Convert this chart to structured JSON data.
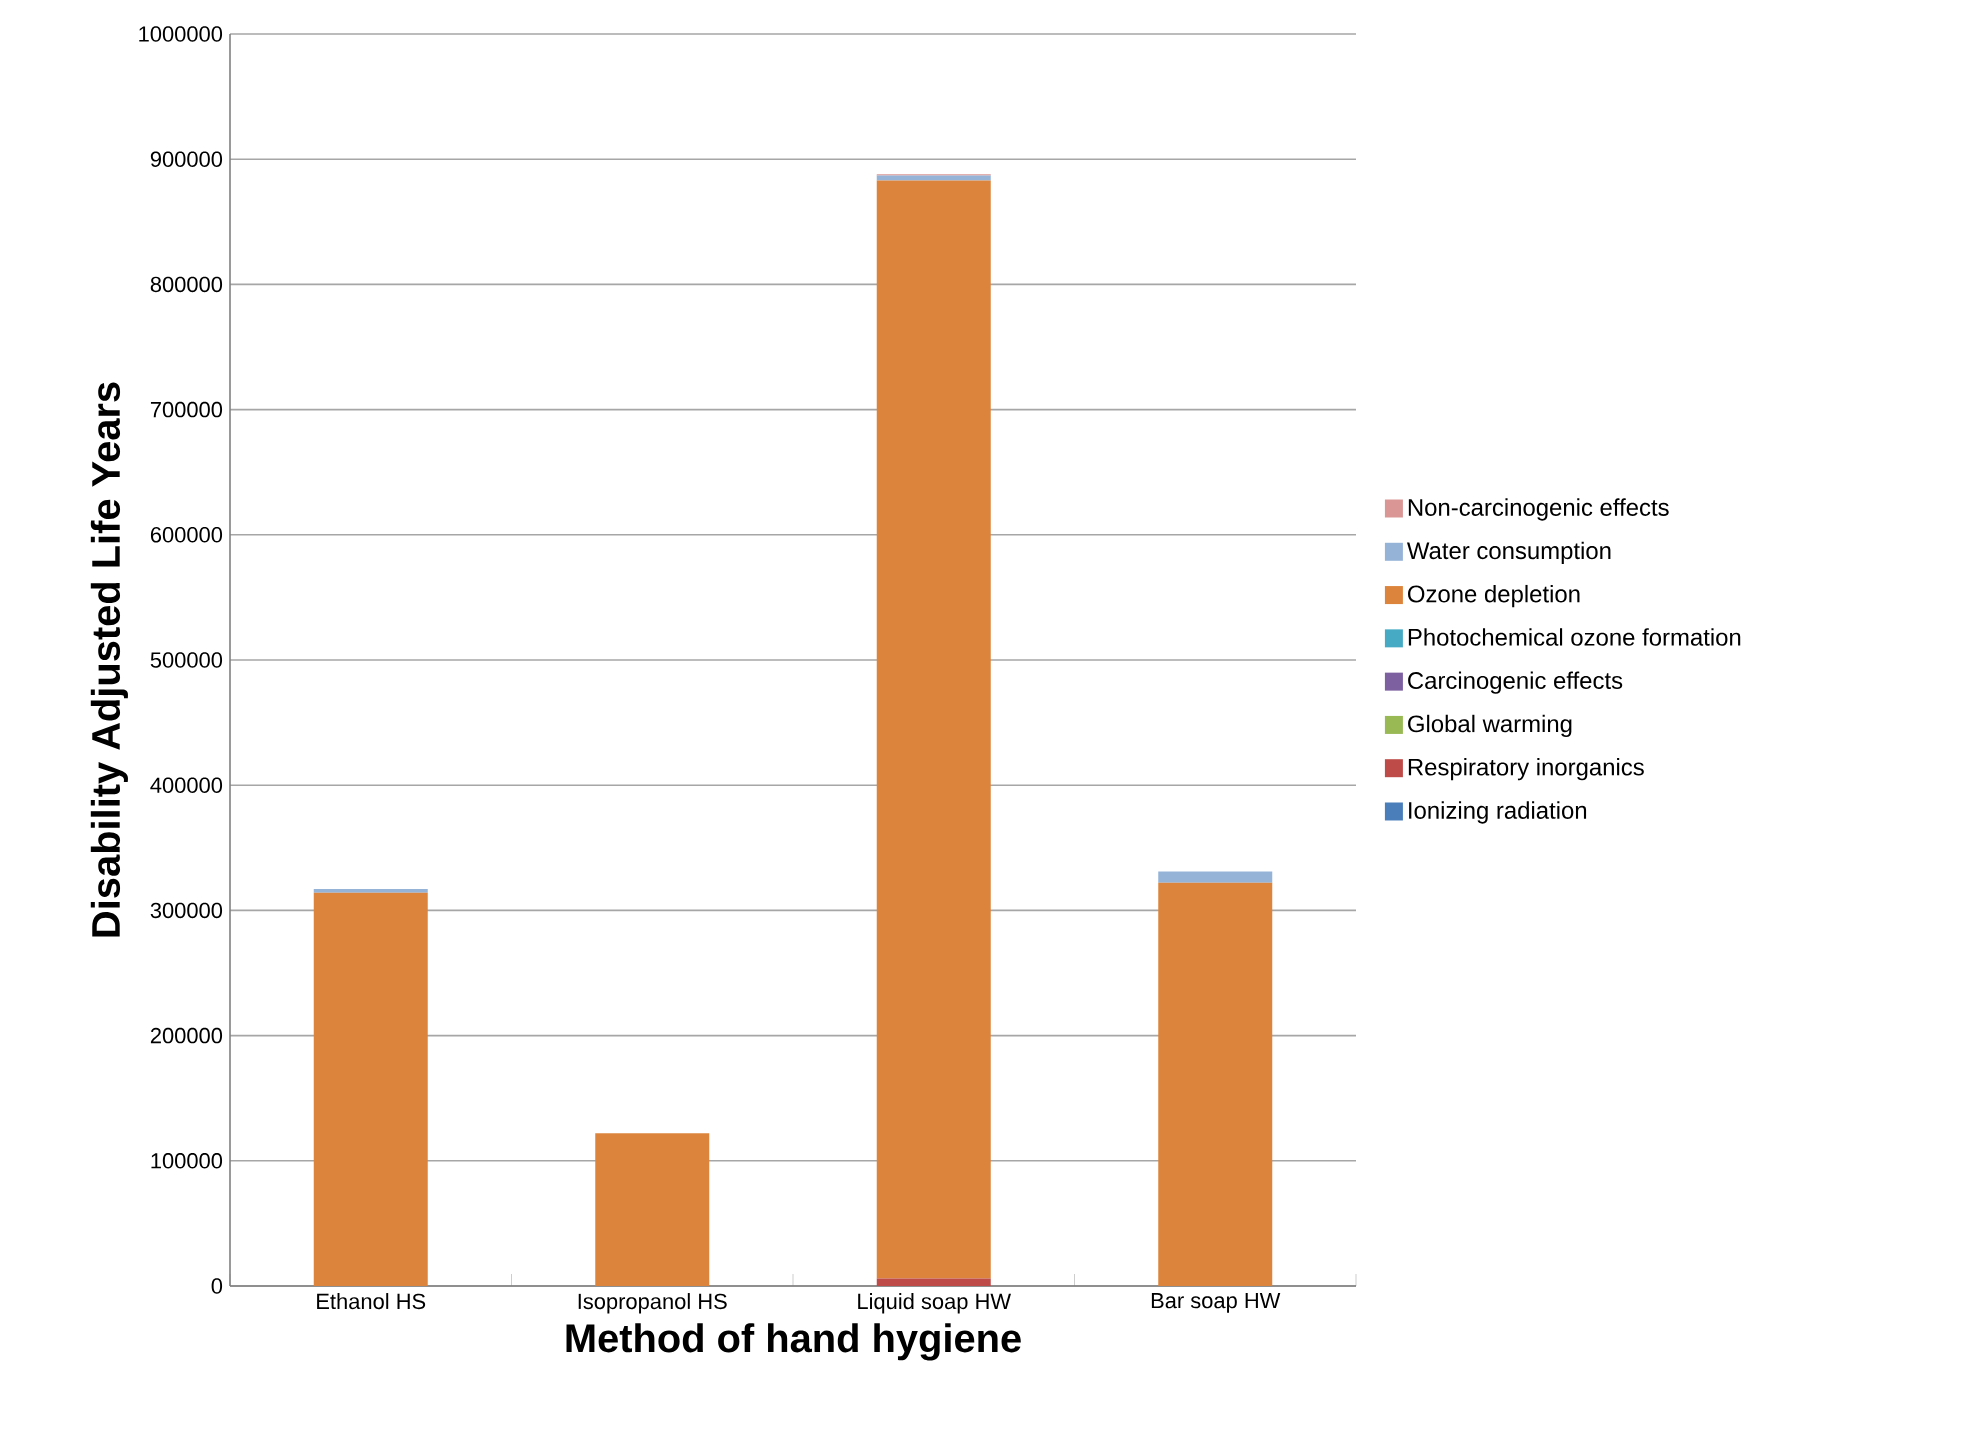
{
  "chart_data": {
    "type": "bar",
    "stacked": true,
    "xlabel": "Method of hand hygiene",
    "ylabel": "Disability Adjusted Life Years",
    "categories": [
      "Ethanol HS",
      "Isopropanol HS",
      "Liquid soap HW",
      "Bar soap HW"
    ],
    "series": [
      {
        "name": "Ionizing radiation",
        "color": "#4a7ebb",
        "values": [
          0,
          0,
          0,
          0
        ]
      },
      {
        "name": "Respiratory inorganics",
        "color": "#be4b48",
        "values": [
          0,
          0,
          6000,
          0
        ]
      },
      {
        "name": "Global warming",
        "color": "#98b954",
        "values": [
          0,
          0,
          0,
          0
        ]
      },
      {
        "name": "Carcinogenic effects",
        "color": "#7d60a0",
        "values": [
          0,
          0,
          0,
          0
        ]
      },
      {
        "name": "Photochemical ozone formation",
        "color": "#46aac5",
        "values": [
          0,
          0,
          0,
          0
        ]
      },
      {
        "name": "Ozone depletion",
        "color": "#dd843c",
        "values": [
          314000,
          122000,
          877000,
          322000
        ]
      },
      {
        "name": "Water consumption",
        "color": "#95b3d7",
        "values": [
          3000,
          0,
          4000,
          9000
        ]
      },
      {
        "name": "Non-carcinogenic effects",
        "color": "#d99694",
        "values": [
          0,
          0,
          1000,
          0
        ]
      }
    ],
    "ylim": [
      0,
      1000000
    ],
    "yticks": [
      0,
      100000,
      200000,
      300000,
      400000,
      500000,
      600000,
      700000,
      800000,
      900000,
      1000000
    ],
    "grid": "y",
    "legend": "right"
  }
}
